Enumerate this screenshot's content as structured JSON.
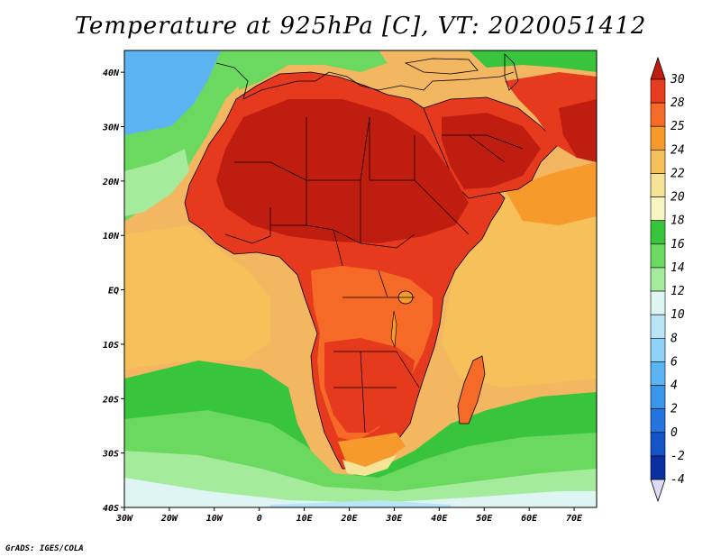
{
  "title": "Temperature at 925hPa [C], VT: 2020051412",
  "footer": "GrADS: IGES/COLA",
  "map": {
    "lon_labels": [
      "30W",
      "20W",
      "10W",
      "0",
      "10E",
      "20E",
      "30E",
      "40E",
      "50E",
      "60E",
      "70E"
    ],
    "lat_labels": [
      "40N",
      "30N",
      "20N",
      "10N",
      "EQ",
      "10S",
      "20S",
      "30S",
      "40S"
    ],
    "lon_range": [
      -30,
      75
    ],
    "lat_range": [
      -40,
      44
    ],
    "ocean_color": "#f2b760",
    "land_color": "#e63a1e"
  },
  "colorbar": {
    "levels": [
      "30",
      "28",
      "25",
      "24",
      "22",
      "20",
      "18",
      "16",
      "14",
      "12",
      "10",
      "8",
      "6",
      "4",
      "2",
      "0",
      "-2",
      "-4"
    ],
    "colors": [
      "#c01d11",
      "#e83c1e",
      "#f56a26",
      "#f79a2c",
      "#f6c05a",
      "#f6e398",
      "#f8f7c4",
      "#38c43d",
      "#6bd860",
      "#a4eb9c",
      "#dff5f3",
      "#b9e6f7",
      "#8ed3f7",
      "#5cb5f2",
      "#3a96ea",
      "#2374df",
      "#1553c8",
      "#0b2fa3",
      "#08127e"
    ],
    "low_cap": "#dcdcf7",
    "high_cap": "#c01d11"
  }
}
